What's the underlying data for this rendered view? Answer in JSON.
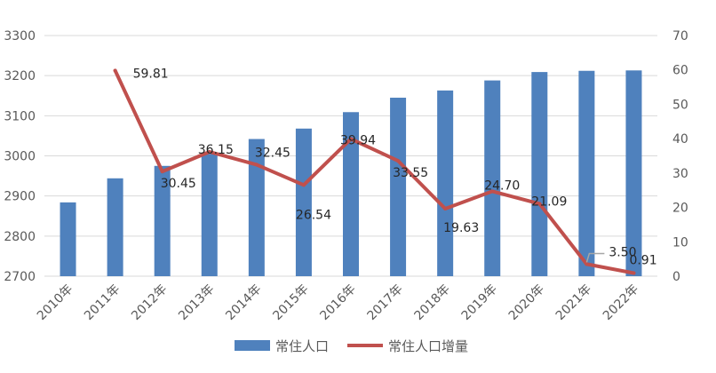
{
  "chart_data": {
    "type": "bar",
    "categories": [
      "2010年",
      "2011年",
      "2012年",
      "2013年",
      "2014年",
      "2015年",
      "2016年",
      "2017年",
      "2018年",
      "2019年",
      "2020年",
      "2021年",
      "2022年"
    ],
    "series": [
      {
        "name": "常住人口",
        "type": "bar",
        "axis": "left",
        "color": "#4f81bd",
        "values": [
          2884,
          2944,
          2975,
          3005,
          3042,
          3068,
          3109,
          3145,
          3163,
          3188,
          3209,
          3212,
          3213
        ]
      },
      {
        "name": "常住人口增量",
        "type": "line",
        "axis": "right",
        "color": "#c0504d",
        "values": [
          null,
          59.81,
          30.45,
          36.15,
          32.45,
          26.54,
          39.94,
          33.55,
          19.63,
          24.7,
          21.09,
          3.5,
          0.91
        ],
        "labels": [
          "",
          "59.81",
          "30.45",
          "36.15",
          "32.45",
          "26.54",
          "39.94",
          "33.55",
          "19.63",
          "24.70",
          "21.09",
          "3.50",
          "0.91"
        ]
      }
    ],
    "y_left": {
      "min": 2700,
      "max": 3300,
      "ticks": [
        2700,
        2800,
        2900,
        3000,
        3100,
        3200,
        3300
      ]
    },
    "y_right": {
      "min": 0,
      "max": 70,
      "ticks": [
        0,
        10,
        20,
        30,
        40,
        50,
        60,
        70
      ]
    },
    "grid": true,
    "legend_position": "bottom",
    "gridline_color": "#d9d9d9"
  }
}
